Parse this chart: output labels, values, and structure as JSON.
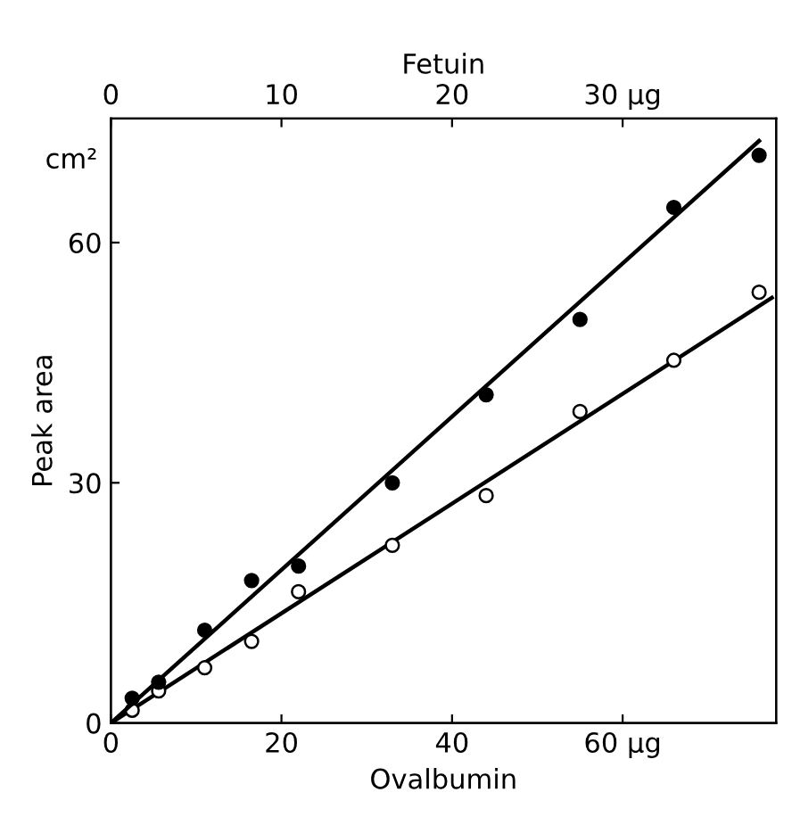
{
  "chart_data": {
    "type": "scatter",
    "xlabel": "Ovalbumin",
    "x2label": "Fetuin",
    "ylabel": "Peak area",
    "annotations": [
      "cm²"
    ],
    "xlim": [
      0,
      78
    ],
    "xticks": [
      0,
      20,
      40,
      {
        "value": 60,
        "label": "60 μg"
      }
    ],
    "x2lim": [
      0,
      39
    ],
    "x2ticks": [
      0,
      10,
      20,
      {
        "value": 30,
        "label": "30 μg"
      }
    ],
    "ylim": [
      0,
      75.5
    ],
    "yticks": [
      0,
      30,
      60
    ],
    "grid": false,
    "legend": false,
    "series": [
      {
        "axis": "x2",
        "marker": "circle",
        "color": "#000000",
        "x": [
          1.25,
          2.8,
          5.5,
          8.25,
          11,
          16.5,
          22,
          27.5,
          33,
          38
        ],
        "values": [
          3.1,
          5.1,
          11.6,
          17.8,
          19.6,
          30,
          41,
          50.4,
          64.4,
          70.9
        ]
      },
      {
        "marker": "circle",
        "color": "#ffffff",
        "x": [
          2.5,
          5.6,
          11,
          16.5,
          22,
          33,
          44,
          55,
          66,
          76
        ],
        "values": [
          1.6,
          4,
          6.9,
          10.2,
          16.4,
          22.2,
          28.4,
          38.9,
          45.3,
          53.8
        ]
      },
      {
        "type": "line",
        "axis": "x2",
        "marker": "none",
        "line_style": "solid",
        "color": "#000000",
        "x": [
          0,
          38
        ],
        "values": [
          0,
          72.7
        ]
      },
      {
        "type": "line",
        "marker": "none",
        "line_style": "solid",
        "color": "#000000",
        "x": [
          0,
          77.5
        ],
        "values": [
          0,
          53.1
        ]
      }
    ]
  }
}
